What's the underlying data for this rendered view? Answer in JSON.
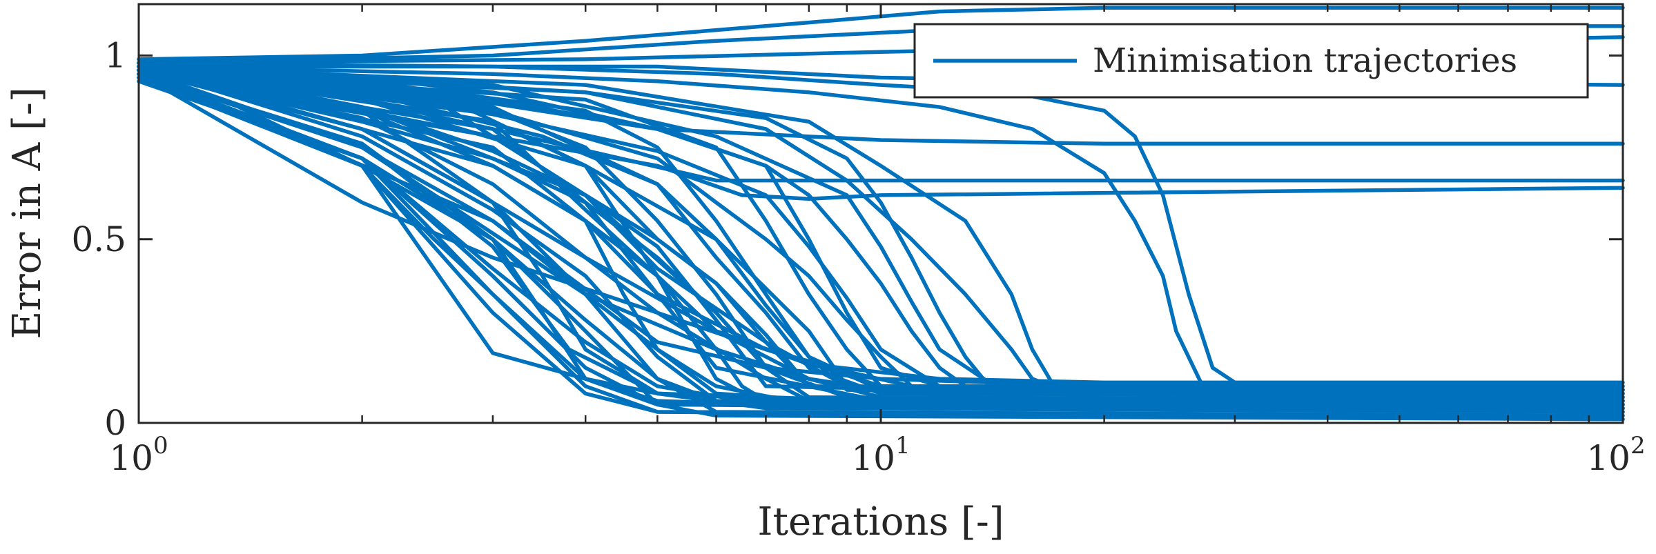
{
  "chart_data": {
    "type": "line",
    "xlabel": "Iterations [-]",
    "ylabel": "Error in A [-]",
    "xscale": "log",
    "xlim": [
      1,
      100
    ],
    "ylim": [
      0,
      1.14
    ],
    "xticks": [
      {
        "value": 1,
        "base": "10",
        "exp": "0"
      },
      {
        "value": 10,
        "base": "10",
        "exp": "1"
      },
      {
        "value": 100,
        "base": "10",
        "exp": "2"
      }
    ],
    "yticks": [
      {
        "value": 0,
        "label": "0"
      },
      {
        "value": 0.5,
        "label": "0.5"
      },
      {
        "value": 1,
        "label": "1"
      }
    ],
    "grid": false,
    "legend": {
      "position": "top-right",
      "entries": [
        "Minimisation trajectories"
      ]
    },
    "line_color": "#0072BD",
    "series": [
      {
        "x": [
          1,
          2,
          4,
          8,
          12,
          20,
          50,
          100
        ],
        "y": [
          0.99,
          1.0,
          1.04,
          1.09,
          1.12,
          1.13,
          1.13,
          1.13
        ]
      },
      {
        "x": [
          1,
          3,
          6,
          12,
          30,
          100
        ],
        "y": [
          0.98,
          1.0,
          1.04,
          1.07,
          1.08,
          1.08
        ]
      },
      {
        "x": [
          1,
          4,
          10,
          30,
          100
        ],
        "y": [
          0.98,
          0.99,
          1.01,
          1.03,
          1.05
        ]
      },
      {
        "x": [
          1,
          5,
          10,
          20,
          100
        ],
        "y": [
          0.97,
          0.97,
          0.94,
          0.93,
          0.92
        ]
      },
      {
        "x": [
          1,
          3,
          6,
          10,
          15,
          20,
          22,
          24,
          26,
          28,
          30,
          32
        ],
        "y": [
          0.98,
          0.97,
          0.95,
          0.92,
          0.9,
          0.85,
          0.78,
          0.62,
          0.35,
          0.15,
          0.11,
          0.105
        ]
      },
      {
        "x": [
          1,
          3,
          5,
          8,
          12,
          16,
          20,
          22,
          24,
          25,
          27
        ],
        "y": [
          0.97,
          0.95,
          0.93,
          0.9,
          0.86,
          0.8,
          0.68,
          0.55,
          0.4,
          0.25,
          0.11
        ]
      },
      {
        "x": [
          1,
          3,
          5,
          10,
          20,
          50,
          100
        ],
        "y": [
          0.97,
          0.88,
          0.8,
          0.77,
          0.76,
          0.76,
          0.76
        ]
      },
      {
        "x": [
          1,
          3,
          6,
          10,
          20,
          100
        ],
        "y": [
          0.96,
          0.8,
          0.66,
          0.66,
          0.66,
          0.66
        ]
      },
      {
        "x": [
          1,
          3,
          5,
          6.5,
          8,
          10,
          100
        ],
        "y": [
          0.95,
          0.78,
          0.7,
          0.62,
          0.61,
          0.62,
          0.64
        ]
      },
      {
        "x": [
          1,
          4,
          8,
          10,
          13,
          15,
          16,
          17,
          30,
          100
        ],
        "y": [
          0.97,
          0.92,
          0.82,
          0.7,
          0.55,
          0.35,
          0.2,
          0.11,
          0.1,
          0.1
        ]
      },
      {
        "x": [
          1,
          4,
          7,
          9,
          11,
          13,
          15,
          16,
          17
        ],
        "y": [
          0.96,
          0.9,
          0.8,
          0.66,
          0.5,
          0.35,
          0.2,
          0.12,
          0.1
        ]
      },
      {
        "x": [
          1,
          1.3,
          2,
          2.5,
          3,
          4,
          5,
          7,
          10,
          100
        ],
        "y": [
          0.94,
          0.88,
          0.7,
          0.5,
          0.35,
          0.12,
          0.06,
          0.05,
          0.05,
          0.05
        ]
      },
      {
        "x": [
          1,
          2,
          3,
          4,
          5,
          10,
          100
        ],
        "y": [
          0.95,
          0.7,
          0.19,
          0.12,
          0.08,
          0.06,
          0.06
        ]
      },
      {
        "x": [
          1,
          2,
          3,
          3.5,
          4,
          5,
          10,
          100
        ],
        "y": [
          0.96,
          0.8,
          0.6,
          0.4,
          0.2,
          0.08,
          0.05,
          0.04
        ]
      },
      {
        "x": [
          1,
          2,
          3,
          4,
          5,
          6,
          10,
          100
        ],
        "y": [
          0.97,
          0.88,
          0.8,
          0.6,
          0.35,
          0.15,
          0.06,
          0.05
        ]
      },
      {
        "x": [
          1,
          2,
          3,
          4,
          5,
          6,
          7,
          10,
          100
        ],
        "y": [
          0.96,
          0.9,
          0.85,
          0.75,
          0.55,
          0.35,
          0.15,
          0.07,
          0.06
        ]
      },
      {
        "x": [
          1,
          2,
          4,
          5,
          6,
          7,
          8,
          10,
          100
        ],
        "y": [
          0.98,
          0.93,
          0.85,
          0.75,
          0.55,
          0.35,
          0.18,
          0.09,
          0.08
        ]
      },
      {
        "x": [
          1,
          2,
          4,
          6,
          7,
          8,
          9,
          10,
          100
        ],
        "y": [
          0.97,
          0.92,
          0.88,
          0.75,
          0.55,
          0.35,
          0.2,
          0.1,
          0.08
        ]
      },
      {
        "x": [
          1,
          2,
          3,
          5,
          7,
          8,
          9,
          10,
          12,
          100
        ],
        "y": [
          0.97,
          0.94,
          0.9,
          0.8,
          0.7,
          0.5,
          0.3,
          0.15,
          0.1,
          0.09
        ]
      },
      {
        "x": [
          1,
          3,
          5,
          6,
          7,
          8,
          10,
          100
        ],
        "y": [
          0.98,
          0.86,
          0.65,
          0.45,
          0.3,
          0.15,
          0.08,
          0.07
        ]
      },
      {
        "x": [
          1,
          2,
          3,
          4,
          5,
          6,
          8,
          100
        ],
        "y": [
          0.96,
          0.75,
          0.55,
          0.35,
          0.2,
          0.1,
          0.05,
          0.04
        ]
      },
      {
        "x": [
          1,
          2,
          3,
          4,
          4.5,
          5,
          6,
          10,
          100
        ],
        "y": [
          0.95,
          0.85,
          0.7,
          0.55,
          0.35,
          0.2,
          0.08,
          0.05,
          0.04
        ]
      },
      {
        "x": [
          1,
          2,
          3,
          4,
          5,
          6,
          7,
          9,
          100
        ],
        "y": [
          0.96,
          0.82,
          0.72,
          0.6,
          0.45,
          0.3,
          0.15,
          0.07,
          0.05
        ]
      },
      {
        "x": [
          1,
          2,
          3.5,
          5,
          6,
          7,
          8,
          9,
          100
        ],
        "y": [
          0.97,
          0.9,
          0.78,
          0.65,
          0.5,
          0.32,
          0.18,
          0.09,
          0.06
        ]
      },
      {
        "x": [
          1,
          2.5,
          4,
          5,
          6,
          6.5,
          7,
          100
        ],
        "y": [
          0.98,
          0.9,
          0.7,
          0.4,
          0.2,
          0.1,
          0.06,
          0.05
        ]
      },
      {
        "x": [
          1,
          2,
          3,
          4,
          5,
          6,
          100
        ],
        "y": [
          0.97,
          0.78,
          0.58,
          0.4,
          0.18,
          0.06,
          0.04
        ]
      },
      {
        "x": [
          1,
          2,
          3,
          3.5,
          4,
          5,
          100
        ],
        "y": [
          0.95,
          0.72,
          0.5,
          0.3,
          0.12,
          0.05,
          0.03
        ]
      },
      {
        "x": [
          1,
          3,
          4,
          5,
          6,
          8,
          10,
          100
        ],
        "y": [
          0.96,
          0.75,
          0.55,
          0.4,
          0.25,
          0.12,
          0.07,
          0.06
        ]
      },
      {
        "x": [
          1,
          3,
          5,
          6,
          7,
          8,
          9,
          10,
          11,
          100
        ],
        "y": [
          0.97,
          0.85,
          0.72,
          0.6,
          0.5,
          0.4,
          0.28,
          0.18,
          0.1,
          0.08
        ]
      },
      {
        "x": [
          1,
          3,
          5,
          7,
          8,
          9,
          10,
          11,
          12,
          13,
          100
        ],
        "y": [
          0.98,
          0.87,
          0.8,
          0.7,
          0.62,
          0.5,
          0.38,
          0.25,
          0.15,
          0.1,
          0.09
        ]
      },
      {
        "x": [
          1,
          4,
          7,
          9,
          10,
          11,
          12,
          13,
          14,
          100
        ],
        "y": [
          0.97,
          0.9,
          0.83,
          0.72,
          0.6,
          0.45,
          0.3,
          0.18,
          0.1,
          0.09
        ]
      },
      {
        "x": [
          1,
          3,
          6,
          9,
          10,
          11,
          12,
          14,
          100
        ],
        "y": [
          0.98,
          0.92,
          0.78,
          0.62,
          0.48,
          0.33,
          0.2,
          0.11,
          0.09
        ]
      },
      {
        "x": [
          1,
          3,
          5,
          7,
          10,
          20,
          100
        ],
        "y": [
          0.96,
          0.55,
          0.22,
          0.15,
          0.12,
          0.1,
          0.1
        ]
      },
      {
        "x": [
          1,
          2,
          4,
          6,
          8,
          10,
          100
        ],
        "y": [
          0.95,
          0.75,
          0.35,
          0.2,
          0.12,
          0.09,
          0.08
        ]
      },
      {
        "x": [
          1,
          2.5,
          4,
          5,
          7,
          9,
          100
        ],
        "y": [
          0.97,
          0.88,
          0.62,
          0.42,
          0.22,
          0.1,
          0.07
        ]
      },
      {
        "x": [
          1,
          3,
          4,
          5,
          6,
          7,
          8,
          100
        ],
        "y": [
          0.98,
          0.82,
          0.7,
          0.5,
          0.38,
          0.22,
          0.1,
          0.06
        ]
      },
      {
        "x": [
          1,
          2,
          3,
          4,
          5,
          7,
          9,
          11,
          100
        ],
        "y": [
          0.96,
          0.85,
          0.6,
          0.45,
          0.3,
          0.2,
          0.14,
          0.1,
          0.09
        ]
      },
      {
        "x": [
          1,
          2,
          3,
          5,
          7,
          8,
          100
        ],
        "y": [
          0.95,
          0.6,
          0.45,
          0.3,
          0.12,
          0.06,
          0.05
        ]
      },
      {
        "x": [
          1,
          3,
          4,
          6,
          7,
          8,
          100
        ],
        "y": [
          0.97,
          0.78,
          0.62,
          0.3,
          0.15,
          0.07,
          0.05
        ]
      },
      {
        "x": [
          1,
          2,
          4,
          6,
          8,
          9,
          100
        ],
        "y": [
          0.98,
          0.88,
          0.7,
          0.5,
          0.25,
          0.1,
          0.07
        ]
      },
      {
        "x": [
          1,
          2,
          3,
          4,
          5,
          6,
          8,
          100
        ],
        "y": [
          0.96,
          0.7,
          0.5,
          0.28,
          0.12,
          0.06,
          0.04,
          0.03
        ]
      },
      {
        "x": [
          1,
          2,
          3,
          3.8,
          5,
          7,
          100
        ],
        "y": [
          0.95,
          0.76,
          0.48,
          0.2,
          0.08,
          0.04,
          0.03
        ]
      },
      {
        "x": [
          1,
          3,
          4,
          5,
          5.5,
          6,
          7,
          100
        ],
        "y": [
          0.97,
          0.82,
          0.58,
          0.4,
          0.25,
          0.12,
          0.05,
          0.04
        ]
      },
      {
        "x": [
          1,
          2,
          3,
          4,
          6,
          8,
          12,
          20,
          100
        ],
        "y": [
          0.96,
          0.83,
          0.65,
          0.45,
          0.25,
          0.16,
          0.12,
          0.11,
          0.11
        ]
      },
      {
        "x": [
          1,
          2,
          3,
          4,
          5,
          7,
          100
        ],
        "y": [
          0.94,
          0.72,
          0.42,
          0.22,
          0.1,
          0.05,
          0.04
        ]
      },
      {
        "x": [
          1,
          3,
          4,
          5,
          7,
          10,
          100
        ],
        "y": [
          0.97,
          0.7,
          0.55,
          0.35,
          0.2,
          0.1,
          0.08
        ]
      },
      {
        "x": [
          1,
          2,
          4,
          5,
          6,
          7,
          100
        ],
        "y": [
          0.98,
          0.86,
          0.62,
          0.48,
          0.28,
          0.1,
          0.05
        ]
      },
      {
        "x": [
          1,
          2,
          3,
          4,
          5,
          6,
          7,
          8,
          100
        ],
        "y": [
          0.96,
          0.86,
          0.74,
          0.62,
          0.5,
          0.38,
          0.24,
          0.1,
          0.06
        ]
      },
      {
        "x": [
          1,
          3,
          5,
          7,
          8,
          9,
          10,
          12,
          100
        ],
        "y": [
          0.97,
          0.84,
          0.74,
          0.62,
          0.48,
          0.34,
          0.2,
          0.1,
          0.09
        ]
      },
      {
        "x": [
          1,
          2,
          3,
          4,
          5,
          100
        ],
        "y": [
          0.94,
          0.7,
          0.3,
          0.08,
          0.03,
          0.02
        ]
      },
      {
        "x": [
          1,
          2,
          3,
          4,
          5,
          100
        ],
        "y": [
          0.93,
          0.72,
          0.35,
          0.1,
          0.03,
          0.01
        ]
      },
      {
        "x": [
          1,
          2,
          3,
          4,
          5,
          6,
          100
        ],
        "y": [
          0.95,
          0.76,
          0.5,
          0.25,
          0.05,
          0.02,
          0.01
        ]
      },
      {
        "x": [
          1,
          2,
          3,
          4,
          5,
          6,
          100
        ],
        "y": [
          0.96,
          0.8,
          0.6,
          0.35,
          0.12,
          0.03,
          0.02
        ]
      },
      {
        "x": [
          1,
          2,
          3,
          4,
          5,
          100
        ],
        "y": [
          0.95,
          0.72,
          0.4,
          0.15,
          0.05,
          0.04
        ]
      }
    ]
  }
}
